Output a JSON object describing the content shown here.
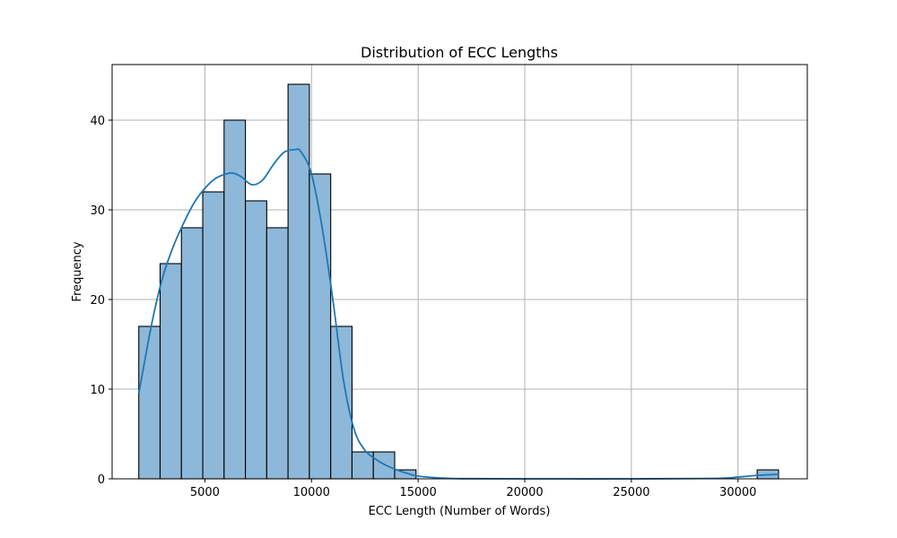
{
  "chart_data": {
    "type": "histogram",
    "title": "Distribution of ECC Lengths",
    "xlabel": "ECC Length (Number of Words)",
    "ylabel": "Frequency",
    "xlim": [
      650,
      33250
    ],
    "ylim": [
      0,
      46.2
    ],
    "grid": true,
    "xticks": [
      5000,
      10000,
      15000,
      20000,
      25000,
      30000
    ],
    "yticks": [
      0,
      10,
      20,
      30,
      40
    ],
    "bins": [
      {
        "x0": 1900,
        "x1": 2900,
        "count": 17
      },
      {
        "x0": 2900,
        "x1": 3900,
        "count": 24
      },
      {
        "x0": 3900,
        "x1": 4900,
        "count": 28
      },
      {
        "x0": 4900,
        "x1": 5900,
        "count": 32
      },
      {
        "x0": 5900,
        "x1": 6900,
        "count": 40
      },
      {
        "x0": 6900,
        "x1": 7900,
        "count": 31
      },
      {
        "x0": 7900,
        "x1": 8900,
        "count": 28
      },
      {
        "x0": 8900,
        "x1": 9900,
        "count": 44
      },
      {
        "x0": 9900,
        "x1": 10900,
        "count": 34
      },
      {
        "x0": 10900,
        "x1": 11900,
        "count": 17
      },
      {
        "x0": 11900,
        "x1": 12900,
        "count": 3
      },
      {
        "x0": 12900,
        "x1": 13900,
        "count": 3
      },
      {
        "x0": 13900,
        "x1": 14900,
        "count": 1
      },
      {
        "x0": 14900,
        "x1": 15900,
        "count": 0
      },
      {
        "x0": 30900,
        "x1": 31900,
        "count": 1
      }
    ],
    "kde": {
      "x": [
        1900,
        2500,
        3000,
        3500,
        4000,
        4500,
        5000,
        5500,
        6000,
        6300,
        6700,
        7200,
        7700,
        8200,
        8700,
        9200,
        9500,
        10000,
        10500,
        11000,
        11500,
        12000,
        12500,
        13000,
        13500,
        14000,
        14500,
        15000,
        16000,
        17000,
        20000,
        25000,
        29000,
        30000,
        30500,
        31000,
        31900
      ],
      "y": [
        9.5,
        17.2,
        22.3,
        25.8,
        28.5,
        30.8,
        32.4,
        33.5,
        34.0,
        34.1,
        33.7,
        32.8,
        33.3,
        35.0,
        36.4,
        36.7,
        36.5,
        34.0,
        28.0,
        20.0,
        11.0,
        5.5,
        3.2,
        2.2,
        1.5,
        1.0,
        0.6,
        0.3,
        0.1,
        0.02,
        0,
        0,
        0.05,
        0.2,
        0.3,
        0.4,
        0.5
      ]
    },
    "colors": {
      "bar_fill": "#8db8da",
      "bar_edge": "#000000",
      "kde_line": "#1f77b4",
      "grid": "#b0b0b0"
    }
  }
}
